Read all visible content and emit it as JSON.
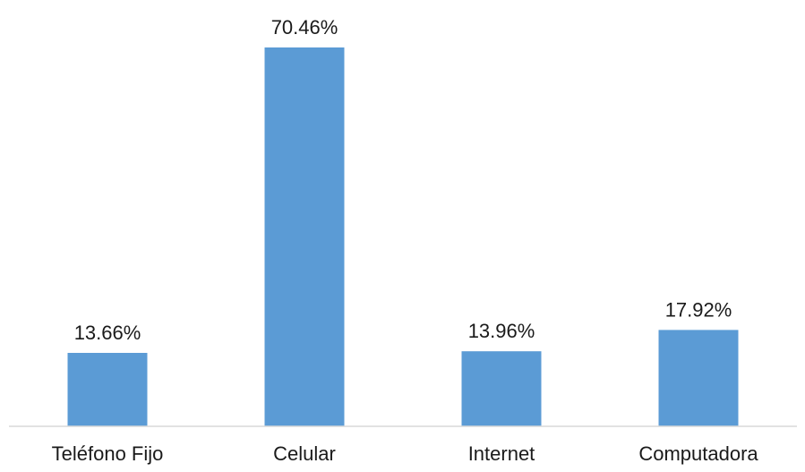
{
  "chart_data": {
    "type": "bar",
    "title": "",
    "xlabel": "",
    "ylabel": "",
    "categories": [
      "Teléfono Fijo",
      "Celular",
      "Internet",
      "Computadora"
    ],
    "values": [
      13.66,
      70.46,
      13.96,
      17.92
    ],
    "value_labels": [
      "13.66%",
      "70.46%",
      "13.96%",
      "17.92%"
    ],
    "unit": "%",
    "ylim": [
      0,
      70.46
    ],
    "grid": false,
    "legend": "none",
    "bar_color": "#5B9BD5",
    "axis_color": "#D9D9D9"
  }
}
